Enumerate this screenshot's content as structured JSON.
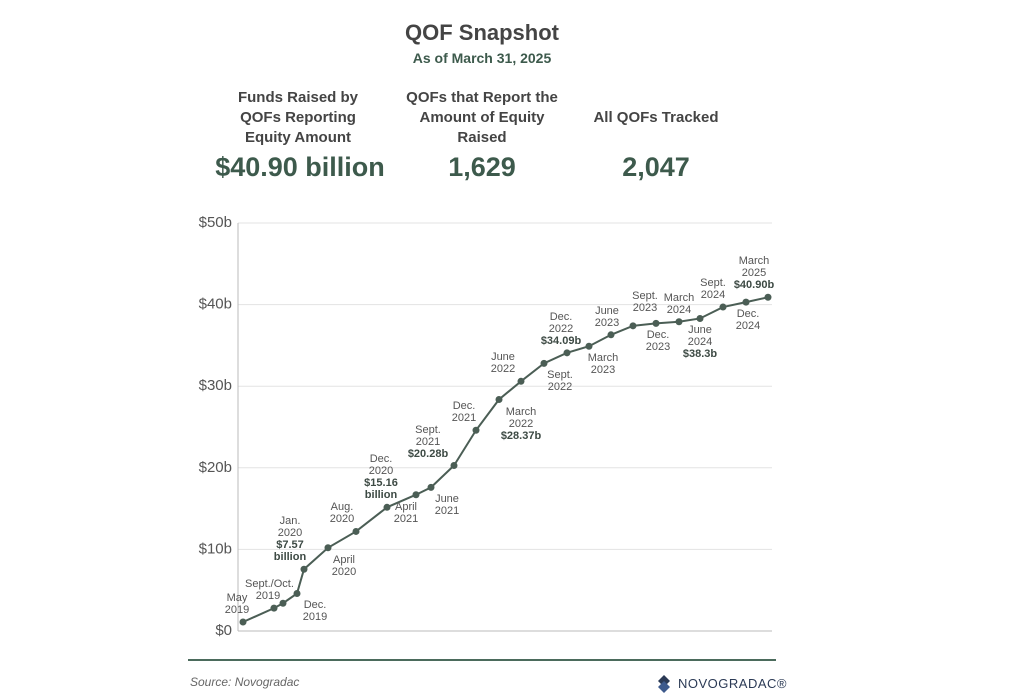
{
  "header": {
    "title": "QOF Snapshot",
    "subtitle": "As of March 31, 2025"
  },
  "stats": [
    {
      "label": "Funds Raised by QOFs Reporting Equity Amount",
      "value": "$40.90 billion"
    },
    {
      "label": "QOFs that Report the Amount of Equity Raised",
      "value": "1,629"
    },
    {
      "label": "All QOFs Tracked",
      "value": "2,047"
    }
  ],
  "chart_data": {
    "type": "line",
    "categories": [
      "May 2019",
      "Sept./Oct. 2019",
      null,
      "Dec. 2019",
      "Jan. 2020",
      "April 2020",
      "Aug. 2020",
      "Dec. 2020",
      "April 2021",
      "June 2021",
      "Sept. 2021",
      "Dec. 2021",
      "March 2022",
      "June 2022",
      "Sept. 2022",
      "Dec. 2022",
      "March 2023",
      "June 2023",
      "Sept. 2023",
      "Dec. 2023",
      "March 2024",
      "June 2024",
      "Sept. 2024",
      "Dec. 2024",
      "March 2025"
    ],
    "values": [
      1.1,
      2.8,
      3.4,
      4.6,
      7.57,
      10.2,
      12.2,
      15.16,
      16.7,
      17.6,
      20.28,
      24.6,
      28.37,
      30.6,
      32.8,
      34.09,
      34.9,
      36.3,
      37.4,
      37.7,
      37.9,
      38.3,
      39.7,
      40.3,
      40.9
    ],
    "value_labels": [
      null,
      null,
      null,
      null,
      "$7.57 billion",
      null,
      null,
      "$15.16 billion",
      null,
      null,
      "$20.28b",
      null,
      "$28.37b",
      null,
      null,
      "$34.09b",
      null,
      null,
      null,
      null,
      null,
      "$38.3b",
      null,
      null,
      "$40.90b"
    ],
    "color": "#4b5e55",
    "ylim": [
      0,
      50
    ],
    "yticks": [
      {
        "value": 0,
        "label": "$0"
      },
      {
        "value": 10,
        "label": "$10b"
      },
      {
        "value": 20,
        "label": "$20b"
      },
      {
        "value": 30,
        "label": "$30b"
      },
      {
        "value": 40,
        "label": "$40b"
      },
      {
        "value": 50,
        "label": "$50b"
      }
    ],
    "grid": true
  },
  "footer": {
    "source": "Source: Novogradac",
    "logo": "NOVOGRADAC®"
  }
}
